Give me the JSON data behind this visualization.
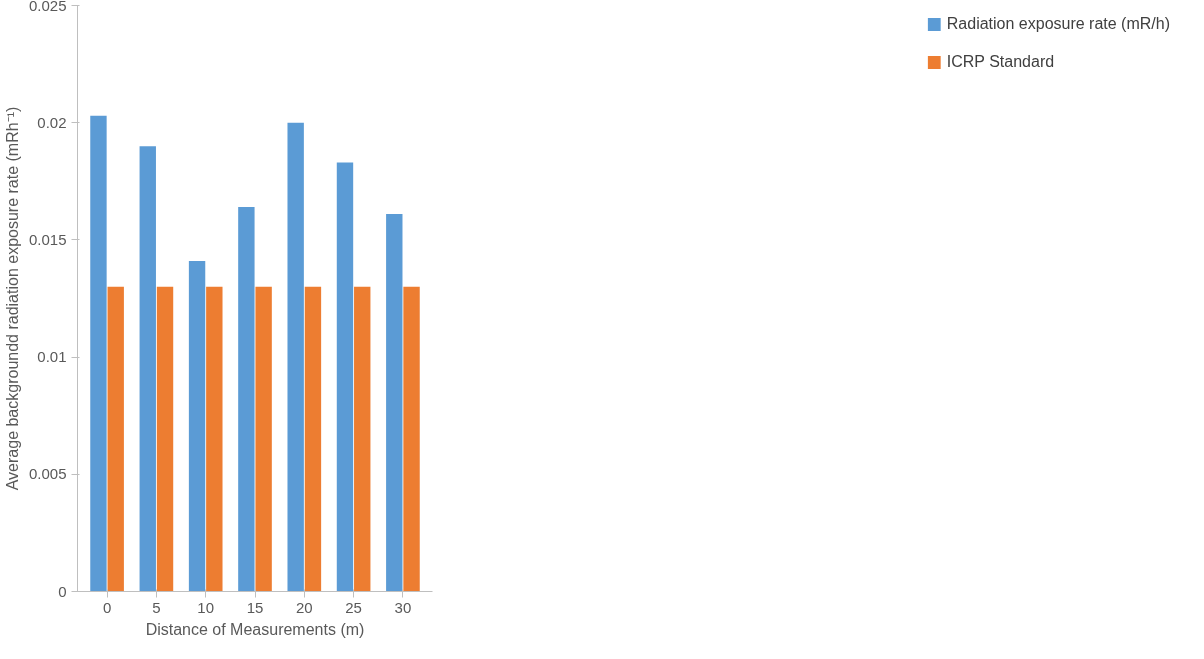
{
  "chart_data": {
    "type": "bar",
    "xlabel": "Distance of Measurements (m)",
    "ylabel": "Average backgroundd radiation exposure rate (mRh⁻¹)",
    "categories": [
      "0",
      "5",
      "10",
      "15",
      "20",
      "25",
      "30"
    ],
    "series": [
      {
        "name": "Radiation exposure rate (mR/h)",
        "color": "#5b9bd5",
        "values": [
          0.0203,
          0.019,
          0.0141,
          0.0164,
          0.02,
          0.0183,
          0.0161
        ]
      },
      {
        "name": "ICRP Standard",
        "color": "#ed7d31",
        "values": [
          0.013,
          0.013,
          0.013,
          0.013,
          0.013,
          0.013,
          0.013
        ]
      }
    ],
    "ylim": [
      0,
      0.025
    ],
    "yticks": [
      0,
      0.005,
      0.01,
      0.015,
      0.02,
      0.025
    ],
    "grid": false,
    "legend": "right"
  }
}
